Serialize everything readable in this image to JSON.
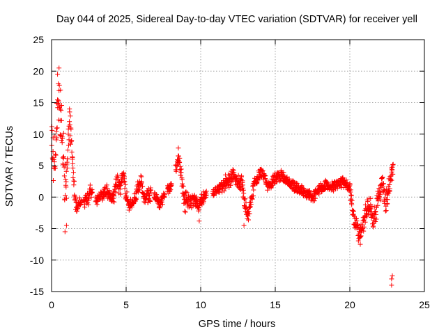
{
  "chart_data": {
    "type": "scatter",
    "title": "Day 044 of 2025, Sidereal Day-to-day VTEC variation (SDTVAR) for receiver yell",
    "xlabel": "GPS time / hours",
    "ylabel": "SDTVAR / TECUs",
    "xlim": [
      0,
      25
    ],
    "ylim": [
      -15,
      25
    ],
    "xticks": [
      0,
      5,
      10,
      15,
      20,
      25
    ],
    "yticks": [
      -15,
      -10,
      -5,
      0,
      5,
      10,
      15,
      20,
      25
    ],
    "xtick_labels": [
      "0",
      "5",
      "10",
      "15",
      "20",
      "25"
    ],
    "ytick_labels": [
      "-15",
      "-10",
      "-5",
      "0",
      "5",
      "10",
      "15",
      "20",
      "25"
    ],
    "grid": true,
    "marker": "+",
    "series": [
      {
        "name": "SDTVAR",
        "color": "#ff0000",
        "envelope_hours": [
          0.0,
          0.1,
          0.2,
          0.3,
          0.4,
          0.5,
          0.6,
          0.7,
          0.8,
          0.9,
          1.0,
          1.1,
          1.2,
          1.3,
          1.4,
          1.5,
          1.6,
          1.7,
          1.8,
          1.9,
          2.0,
          2.5,
          2.6,
          3.0,
          3.3,
          3.5,
          3.7,
          4.0,
          4.2,
          4.4,
          4.6,
          4.8,
          5.0,
          5.2,
          5.4,
          5.6,
          5.8,
          6.0,
          6.2,
          6.6,
          7.0,
          7.2,
          7.4,
          8.0,
          8.5,
          8.7,
          8.9,
          9.2,
          9.4,
          9.6,
          9.8,
          10.0,
          10.2,
          11.0,
          11.3,
          11.6,
          11.9,
          12.2,
          12.5,
          12.8,
          13.0,
          13.2,
          13.4,
          13.6,
          13.8,
          14.0,
          14.2,
          14.5,
          14.8,
          15.0,
          15.3,
          15.6,
          16.0,
          16.4,
          16.8,
          17.2,
          17.6,
          18.0,
          18.4,
          18.8,
          19.2,
          19.5,
          19.8,
          20.0,
          20.2,
          20.4,
          20.6,
          20.8,
          21.0,
          21.2,
          21.4,
          21.6,
          21.8,
          22.0,
          22.2,
          22.4,
          22.6,
          22.8,
          22.9
        ],
        "envelope_mid": [
          8.0,
          6.0,
          5.0,
          9.0,
          14.0,
          16.0,
          13.0,
          9.0,
          6.0,
          3.0,
          1.0,
          9.0,
          12.0,
          11.0,
          6.0,
          2.0,
          -1.0,
          -2.0,
          -1.0,
          -0.5,
          -1.0,
          0.0,
          1.0,
          -0.5,
          0.0,
          0.5,
          1.0,
          0.0,
          0.5,
          2.5,
          1.0,
          4.0,
          0.0,
          -1.5,
          -1.0,
          0.0,
          1.5,
          2.5,
          0.0,
          0.5,
          0.0,
          -1.0,
          -0.5,
          2.0,
          6.0,
          3.5,
          -1.0,
          -0.5,
          -1.0,
          0.0,
          -1.5,
          -1.0,
          0.0,
          1.0,
          1.5,
          2.0,
          3.0,
          3.5,
          2.5,
          2.0,
          -2.0,
          -3.0,
          0.0,
          2.0,
          3.0,
          4.0,
          3.5,
          1.5,
          2.5,
          3.0,
          3.5,
          3.0,
          2.0,
          1.5,
          1.0,
          0.5,
          0.0,
          1.5,
          2.0,
          1.5,
          2.0,
          2.5,
          2.0,
          1.0,
          -2.0,
          -4.5,
          -6.0,
          -5.5,
          -3.0,
          -1.0,
          -2.0,
          -3.5,
          -1.5,
          1.0,
          2.0,
          -1.0,
          1.0,
          3.5,
          5.0
        ],
        "envelope_spread": [
          5.0,
          4.0,
          5.0,
          6.0,
          5.0,
          4.0,
          4.0,
          5.0,
          5.0,
          5.0,
          4.0,
          4.0,
          3.0,
          3.0,
          3.0,
          2.0,
          1.5,
          1.0,
          1.0,
          1.0,
          1.0,
          1.5,
          1.0,
          1.0,
          1.0,
          1.0,
          1.5,
          1.0,
          1.5,
          1.5,
          1.0,
          1.5,
          1.5,
          1.0,
          1.0,
          1.0,
          1.5,
          1.5,
          1.0,
          1.5,
          1.0,
          1.0,
          1.0,
          1.0,
          1.5,
          1.5,
          2.0,
          2.0,
          1.5,
          1.5,
          1.0,
          1.5,
          1.0,
          1.0,
          1.0,
          1.5,
          1.5,
          1.5,
          1.5,
          1.5,
          2.0,
          1.5,
          1.5,
          1.0,
          1.0,
          1.0,
          1.0,
          1.0,
          1.0,
          1.0,
          1.0,
          1.0,
          1.0,
          1.0,
          1.0,
          1.0,
          1.0,
          1.0,
          1.0,
          1.0,
          1.0,
          1.0,
          1.0,
          1.5,
          2.0,
          2.0,
          1.5,
          1.5,
          2.0,
          2.0,
          2.0,
          2.0,
          2.5,
          2.0,
          2.0,
          2.0,
          2.0,
          2.0,
          1.0
        ],
        "gaps_hours": [
          [
            2.0,
            2.15
          ],
          [
            2.75,
            2.95
          ],
          [
            6.7,
            6.85
          ],
          [
            7.6,
            7.75
          ],
          [
            8.05,
            8.3
          ],
          [
            10.4,
            10.8
          ]
        ],
        "isolated_points": [
          [
            0.5,
            20.5
          ],
          [
            0.4,
            19.5
          ],
          [
            0.45,
            18.0
          ],
          [
            0.6,
            17.0
          ],
          [
            0.9,
            -5.5
          ],
          [
            1.0,
            -4.5
          ],
          [
            1.2,
            14.0
          ],
          [
            22.8,
            -14.0
          ],
          [
            22.8,
            -13.0
          ],
          [
            22.85,
            -12.5
          ],
          [
            9.9,
            -3.8
          ],
          [
            12.9,
            -4.5
          ],
          [
            8.5,
            7.8
          ],
          [
            20.7,
            -7.5
          ]
        ]
      }
    ]
  }
}
